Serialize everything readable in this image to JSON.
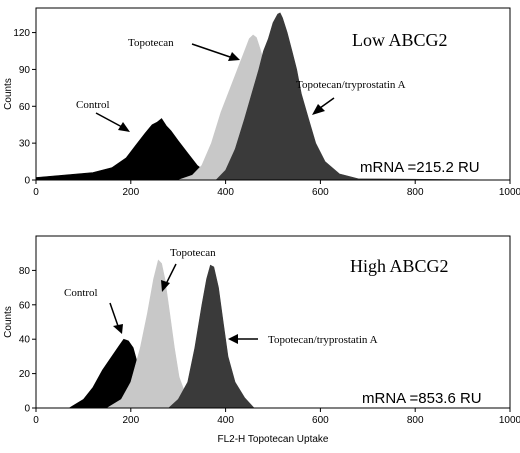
{
  "chart_data": [
    {
      "type": "area",
      "title": "Low ABCG2",
      "ylabel": "Counts",
      "xlabel": "",
      "xlim": [
        0,
        1000
      ],
      "ylim": [
        0,
        140
      ],
      "xticks": [
        "0",
        "200",
        "400",
        "600",
        "800",
        "1000"
      ],
      "yticks": [
        "0",
        "30",
        "60",
        "90",
        "120"
      ],
      "annotation": "mRNA =215.2 RU",
      "series": [
        {
          "name": "Control",
          "color": "#000000",
          "x": [
            0,
            60,
            120,
            160,
            190,
            210,
            230,
            245,
            255,
            265,
            275,
            285,
            300,
            320,
            340,
            360,
            380,
            400,
            1000
          ],
          "y": [
            2,
            4,
            6,
            10,
            18,
            28,
            38,
            45,
            47,
            50,
            44,
            40,
            32,
            22,
            12,
            6,
            3,
            1,
            0
          ]
        },
        {
          "name": "Topotecan",
          "color": "#c8c8c8",
          "x": [
            300,
            330,
            350,
            370,
            390,
            405,
            420,
            430,
            440,
            450,
            458,
            465,
            470,
            478,
            485,
            495,
            505,
            515,
            530,
            1000
          ],
          "y": [
            0,
            4,
            12,
            30,
            55,
            70,
            85,
            95,
            105,
            115,
            118,
            116,
            110,
            100,
            85,
            60,
            35,
            15,
            0,
            0
          ]
        },
        {
          "name": "Topotecan/tryprostatin A",
          "color": "#3a3a3a",
          "x": [
            380,
            400,
            420,
            440,
            455,
            470,
            480,
            490,
            500,
            510,
            515,
            520,
            530,
            540,
            550,
            560,
            575,
            590,
            610,
            640,
            680,
            1000
          ],
          "y": [
            0,
            8,
            25,
            50,
            70,
            90,
            105,
            115,
            128,
            135,
            136,
            132,
            120,
            105,
            90,
            70,
            50,
            30,
            15,
            5,
            1,
            0
          ]
        }
      ],
      "labels": {
        "control": "Control",
        "topotecan": "Topotecan",
        "combo": "Topotecan/tryprostatin A"
      }
    },
    {
      "type": "area",
      "title": "High ABCG2",
      "ylabel": "Counts",
      "xlabel": "FL2-H Topotecan Uptake",
      "xlim": [
        0,
        1000
      ],
      "ylim": [
        0,
        100
      ],
      "xticks": [
        "0",
        "200",
        "400",
        "600",
        "800",
        "1000"
      ],
      "yticks": [
        "0",
        "20",
        "40",
        "60",
        "80"
      ],
      "annotation": "mRNA =853.6 RU",
      "series": [
        {
          "name": "Control",
          "color": "#000000",
          "x": [
            70,
            100,
            120,
            140,
            160,
            175,
            185,
            195,
            205,
            215,
            225,
            235,
            250,
            270,
            1000
          ],
          "y": [
            0,
            5,
            12,
            22,
            30,
            36,
            40,
            39,
            35,
            25,
            15,
            8,
            3,
            0,
            0
          ]
        },
        {
          "name": "Topotecan",
          "color": "#c8c8c8",
          "x": [
            150,
            180,
            200,
            220,
            235,
            248,
            258,
            265,
            272,
            282,
            292,
            302,
            318,
            340,
            1000
          ],
          "y": [
            0,
            5,
            15,
            35,
            55,
            75,
            86,
            84,
            75,
            55,
            35,
            18,
            6,
            0,
            0
          ]
        },
        {
          "name": "Topotecan/tryprostatin A",
          "color": "#3a3a3a",
          "x": [
            280,
            300,
            320,
            335,
            350,
            360,
            368,
            375,
            385,
            395,
            405,
            420,
            440,
            460,
            1000
          ],
          "y": [
            0,
            5,
            15,
            35,
            60,
            75,
            83,
            82,
            70,
            50,
            30,
            15,
            6,
            0,
            0
          ]
        }
      ],
      "labels": {
        "control": "Control",
        "topotecan": "Topotecan",
        "combo": "Topotecan/tryprostatin A"
      }
    }
  ]
}
